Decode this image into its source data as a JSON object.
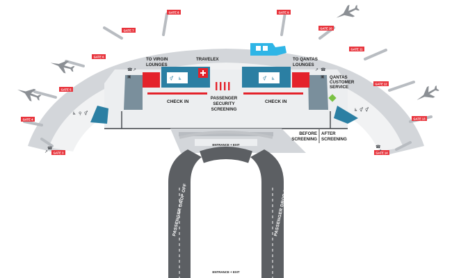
{
  "gates": [
    {
      "id": "gate-8",
      "label": "GATE 8"
    },
    {
      "id": "gate-9",
      "label": "GATE 9"
    },
    {
      "id": "gate-7",
      "label": "GATE 7"
    },
    {
      "id": "gate-10",
      "label": "GATE 10"
    },
    {
      "id": "gate-6",
      "label": "GATE 6"
    },
    {
      "id": "gate-11",
      "label": "GATE 11"
    },
    {
      "id": "gate-5",
      "label": "GATE 5"
    },
    {
      "id": "gate-12",
      "label": "GATE 12"
    },
    {
      "id": "gate-4",
      "label": "GATE 4"
    },
    {
      "id": "gate-13",
      "label": "GATE 13"
    },
    {
      "id": "gate-3",
      "label": "GATE 3"
    },
    {
      "id": "gate-14",
      "label": "GATE 14"
    }
  ],
  "labels": {
    "virgin_lounges": [
      "TO VIRGIN",
      "LOUNGES"
    ],
    "qantas_lounges": [
      "TO QANTAS",
      "LOUNGES"
    ],
    "travelex": "TRAVELEX",
    "qantas_service": [
      "QANTAS",
      "CUSTOMER",
      "SERVICE"
    ],
    "check_in_left": "CHECK IN",
    "check_in_right": "CHECK IN",
    "security": [
      "PASSENGER",
      "SECURITY",
      "SCREENING"
    ],
    "before_screening": [
      "BEFORE",
      "SCREENING"
    ],
    "after_screening": [
      "AFTER",
      "SCREENING"
    ],
    "entrance_exit": "ENTRANCE + EXIT",
    "drop_off_left": "PASSENGER DROP OFF",
    "drop_off_right": "PASSENGER DROP OFF"
  },
  "colors": {
    "gate_red": "#e8343c",
    "terminal_floor": "#eceef0",
    "apron": "#d3d6da",
    "road": "#5c5f63",
    "counter_blue": "#2f9fd0",
    "lounge_red": "#e4222b",
    "qantas_green": "#7ac143",
    "teal": "#2b7fa3"
  },
  "icons": [
    "plane-icon",
    "wifi-icon",
    "toilets-icon",
    "accessible-icon",
    "luggage-icon",
    "currency-exchange-icon",
    "escalator-icon"
  ]
}
